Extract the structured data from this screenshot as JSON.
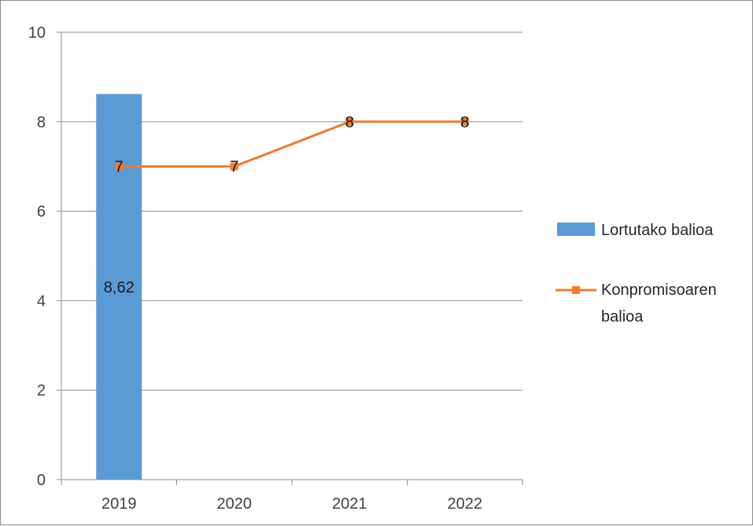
{
  "chart_data": {
    "type": "bar+line",
    "categories": [
      "2019",
      "2020",
      "2021",
      "2022"
    ],
    "series": [
      {
        "name": "Lortutako balioa",
        "type": "bar",
        "color": "#5b9bd5",
        "values": [
          8.62,
          null,
          null,
          null
        ],
        "labels": [
          "8,62",
          "",
          "",
          ""
        ]
      },
      {
        "name": "Konpromisoaren balioa",
        "type": "line",
        "color": "#ed7d31",
        "marker": "square",
        "values": [
          7,
          7,
          8,
          8
        ],
        "labels": [
          "7",
          "7",
          "8",
          "8"
        ]
      }
    ],
    "ylim": [
      0,
      10
    ],
    "yticks": [
      "0",
      "2",
      "4",
      "6",
      "8",
      "10"
    ],
    "grid": true,
    "legend_position": "right"
  },
  "legend": {
    "bar_label": "Lortutako balioa",
    "line_label_1": "Konpromisoaren",
    "line_label_2": "balioa"
  }
}
